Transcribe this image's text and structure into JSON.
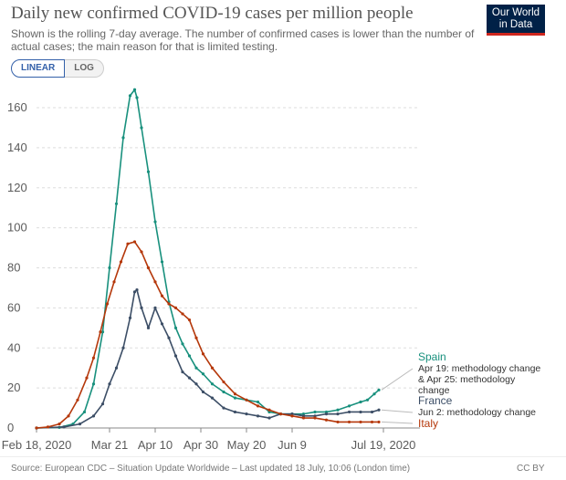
{
  "header": {
    "title": "Daily new confirmed COVID-19 cases per million people",
    "subtitle": "Shown is the rolling 7-day average. The number of confirmed cases is lower than the number of actual cases; the main reason for that is limited testing.",
    "logo_line1": "Our World",
    "logo_line2": "in Data",
    "linear_label": "LINEAR",
    "log_label": "LOG"
  },
  "footer": {
    "source": "Source: European CDC – Situation Update Worldwide – Last updated 18 July, 10:06 (London time)",
    "license": "CC BY"
  },
  "colors": {
    "spain": "#18907d",
    "france": "#3c4e66",
    "italy": "#b5380b",
    "grid": "#dddddd"
  },
  "chart_data": {
    "type": "line",
    "title": "Daily new confirmed COVID-19 cases per million people",
    "x_tick_labels": [
      "Feb 18, 2020",
      "Mar 21",
      "Apr 10",
      "Apr 30",
      "May 20",
      "Jun 9",
      "Jul 19, 2020"
    ],
    "x_ticks": [
      "2020-02-18",
      "2020-03-21",
      "2020-04-10",
      "2020-04-30",
      "2020-05-20",
      "2020-06-09",
      "2020-07-19"
    ],
    "xlim": [
      "2020-02-18",
      "2020-07-19"
    ],
    "y_ticks": [
      0,
      20,
      40,
      60,
      80,
      100,
      120,
      140,
      160
    ],
    "ylim": [
      0,
      170
    ],
    "grid": true,
    "series": [
      {
        "name": "Spain",
        "color": "#18907d",
        "note": "Apr 19: methodology change & Apr 25: methodology change",
        "x": [
          "2020-02-18",
          "2020-02-28",
          "2020-03-05",
          "2020-03-10",
          "2020-03-14",
          "2020-03-18",
          "2020-03-21",
          "2020-03-24",
          "2020-03-27",
          "2020-03-30",
          "2020-04-01",
          "2020-04-02",
          "2020-04-04",
          "2020-04-07",
          "2020-04-10",
          "2020-04-13",
          "2020-04-16",
          "2020-04-19",
          "2020-04-22",
          "2020-04-25",
          "2020-04-28",
          "2020-05-01",
          "2020-05-05",
          "2020-05-10",
          "2020-05-15",
          "2020-05-20",
          "2020-05-25",
          "2020-05-30",
          "2020-06-04",
          "2020-06-09",
          "2020-06-14",
          "2020-06-19",
          "2020-06-24",
          "2020-06-29",
          "2020-07-04",
          "2020-07-09",
          "2020-07-12",
          "2020-07-15",
          "2020-07-17"
        ],
        "values": [
          0,
          0.3,
          2,
          8,
          22,
          48,
          80,
          112,
          145,
          166,
          169,
          165,
          150,
          128,
          103,
          83,
          63,
          50,
          42,
          36,
          30,
          27,
          22,
          18,
          15,
          14,
          13,
          8,
          7,
          7,
          7,
          8,
          8,
          9,
          11,
          13,
          14,
          17,
          19
        ]
      },
      {
        "name": "France",
        "color": "#3c4e66",
        "note": "Jun 2: methodology change",
        "x": [
          "2020-02-18",
          "2020-03-01",
          "2020-03-08",
          "2020-03-14",
          "2020-03-18",
          "2020-03-21",
          "2020-03-24",
          "2020-03-27",
          "2020-03-30",
          "2020-04-01",
          "2020-04-02",
          "2020-04-04",
          "2020-04-07",
          "2020-04-10",
          "2020-04-13",
          "2020-04-16",
          "2020-04-19",
          "2020-04-22",
          "2020-04-25",
          "2020-04-28",
          "2020-05-01",
          "2020-05-05",
          "2020-05-10",
          "2020-05-15",
          "2020-05-20",
          "2020-05-25",
          "2020-05-30",
          "2020-06-04",
          "2020-06-09",
          "2020-06-14",
          "2020-06-19",
          "2020-06-24",
          "2020-06-29",
          "2020-07-04",
          "2020-07-09",
          "2020-07-14",
          "2020-07-17"
        ],
        "values": [
          0,
          0.5,
          2,
          6,
          12,
          22,
          30,
          40,
          55,
          68,
          69,
          60,
          50,
          60,
          52,
          45,
          36,
          28,
          25,
          22,
          18,
          15,
          10,
          8,
          7,
          6,
          5,
          7,
          7,
          6,
          6,
          7,
          7,
          8,
          8,
          8,
          9
        ]
      },
      {
        "name": "Italy",
        "color": "#b5380b",
        "x": [
          "2020-02-18",
          "2020-02-23",
          "2020-02-28",
          "2020-03-03",
          "2020-03-07",
          "2020-03-11",
          "2020-03-14",
          "2020-03-17",
          "2020-03-20",
          "2020-03-23",
          "2020-03-26",
          "2020-03-29",
          "2020-04-01",
          "2020-04-04",
          "2020-04-07",
          "2020-04-10",
          "2020-04-13",
          "2020-04-16",
          "2020-04-19",
          "2020-04-22",
          "2020-04-25",
          "2020-04-28",
          "2020-05-01",
          "2020-05-05",
          "2020-05-10",
          "2020-05-15",
          "2020-05-20",
          "2020-05-25",
          "2020-05-30",
          "2020-06-04",
          "2020-06-09",
          "2020-06-14",
          "2020-06-19",
          "2020-06-24",
          "2020-06-29",
          "2020-07-04",
          "2020-07-09",
          "2020-07-14",
          "2020-07-17"
        ],
        "values": [
          0,
          0.5,
          2,
          6,
          14,
          25,
          35,
          48,
          62,
          73,
          83,
          92,
          93,
          88,
          80,
          73,
          66,
          62,
          60,
          57,
          54,
          45,
          37,
          30,
          23,
          17,
          14,
          11,
          9,
          7,
          6,
          5,
          5,
          4,
          3,
          3,
          3,
          3,
          3
        ]
      }
    ]
  }
}
